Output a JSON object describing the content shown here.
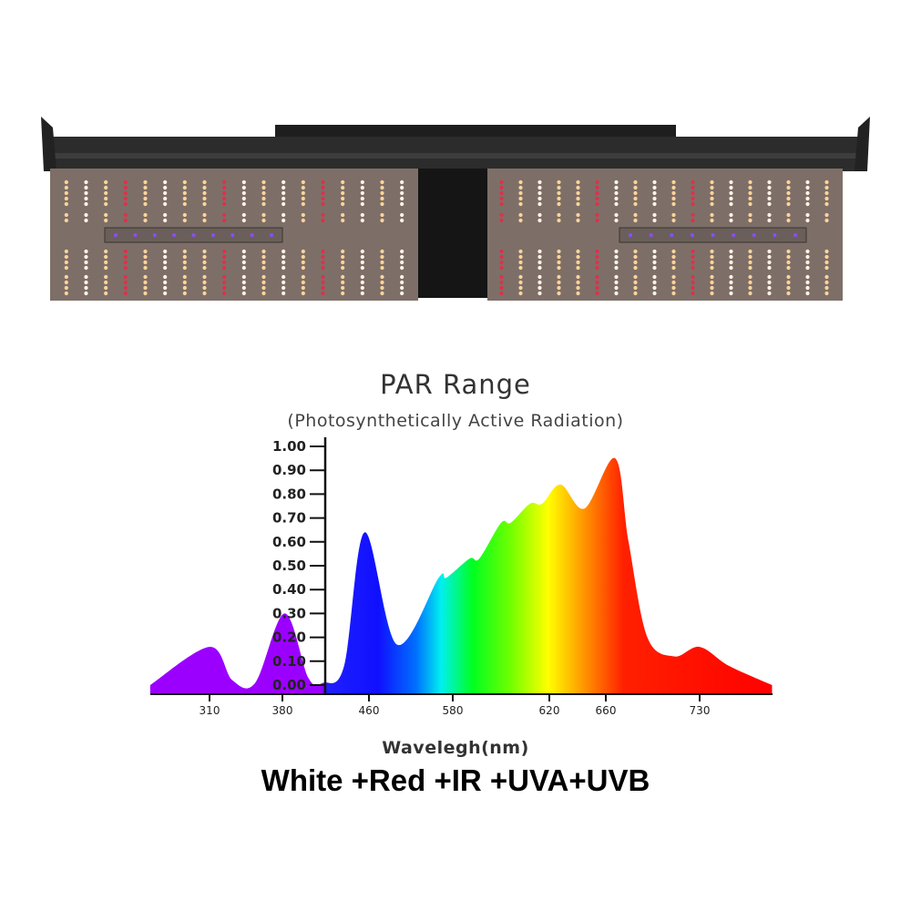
{
  "product": {
    "name": "LED grow light fixture",
    "led_colors": {
      "warm_white": "#ffd49a",
      "white": "#fff4e6",
      "red": "#e0304a",
      "uv": "#8a4dff"
    }
  },
  "caption": "White +Red +IR +UVA+UVB",
  "chart_data": {
    "type": "area",
    "title": "PAR Range",
    "subtitle": "(Photosynthetically Active Radiation)",
    "xlabel": "Wavelegh(nm)",
    "ylabel": "",
    "ylim": [
      0,
      1.0
    ],
    "yticks": [
      "0.00",
      "0.10",
      "0.20",
      "0.30",
      "0.40",
      "0.50",
      "0.60",
      "0.70",
      "0.80",
      "0.90",
      "1.00"
    ],
    "xticks": [
      310,
      380,
      460,
      580,
      620,
      660,
      730
    ],
    "grid": false,
    "legend": "none",
    "fill": "rainbow gradient by wavelength (UV purple to red)",
    "colors": {
      "uv": "#9b00ff",
      "blue": "#1010ff",
      "cyan": "#00f0f0",
      "green": "#00ff00",
      "yellow": "#ffff00",
      "orange": "#ff8000",
      "red": "#ff0000"
    },
    "x": [
      253,
      310,
      332,
      354,
      382,
      404,
      418,
      437,
      456,
      500,
      560,
      571,
      587,
      591,
      600,
      604,
      612,
      617,
      628,
      645,
      667,
      677,
      691,
      711,
      730,
      752,
      784
    ],
    "y": [
      0,
      0.16,
      0.02,
      0.01,
      0.3,
      0.03,
      0.01,
      0.08,
      0.64,
      0.17,
      0.45,
      0.45,
      0.53,
      0.53,
      0.68,
      0.68,
      0.76,
      0.76,
      0.84,
      0.74,
      0.95,
      0.6,
      0.2,
      0.12,
      0.16,
      0.08,
      0
    ]
  }
}
